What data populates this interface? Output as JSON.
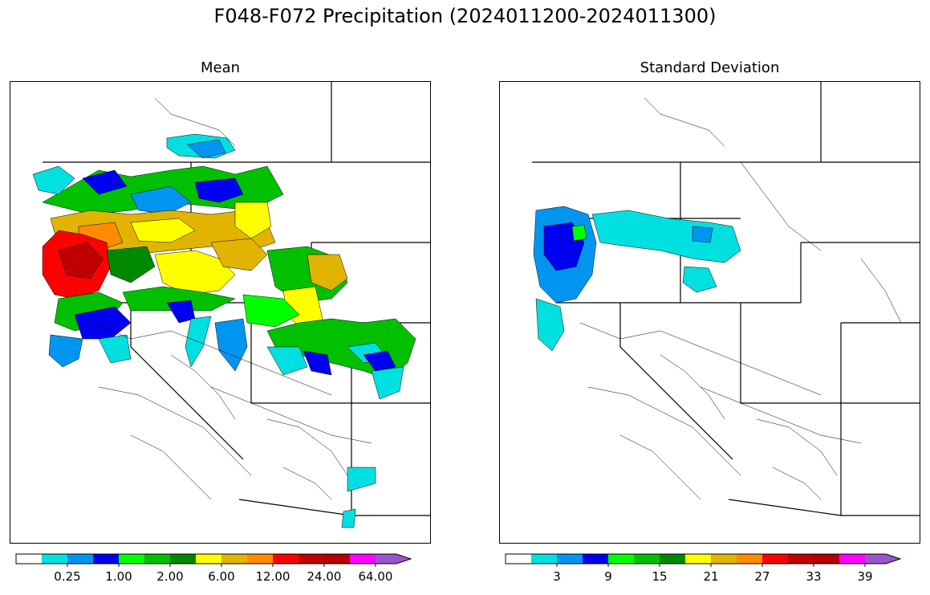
{
  "title": "F048-F072 Precipitation (2024011200-2024011300)",
  "panels": {
    "mean": {
      "title": "Mean"
    },
    "std": {
      "title": "Standard Deviation"
    }
  },
  "colorbars": {
    "mean": {
      "colors": [
        "#ffffff",
        "#00e0e0",
        "#0096f0",
        "#0000f0",
        "#00ff00",
        "#00c000",
        "#008800",
        "#ffff00",
        "#e0b400",
        "#ff8c00",
        "#ff0000",
        "#c00000",
        "#b40000",
        "#ff00ff",
        "#9955cc"
      ],
      "tick_labels": [
        "0.25",
        "1.00",
        "2.00",
        "6.00",
        "12.00",
        "24.00",
        "64.00"
      ],
      "extend": "max"
    },
    "std": {
      "colors": [
        "#ffffff",
        "#00e0e0",
        "#0096f0",
        "#0000f0",
        "#00ff00",
        "#00c000",
        "#008800",
        "#ffff00",
        "#e0b400",
        "#ff8c00",
        "#ff0000",
        "#c00000",
        "#b40000",
        "#ff00ff",
        "#9955cc"
      ],
      "tick_labels": [
        "3",
        "9",
        "15",
        "21",
        "27",
        "33",
        "39"
      ],
      "extend": "max"
    }
  }
}
